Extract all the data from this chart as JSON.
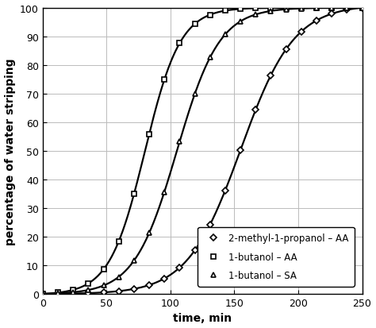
{
  "title": "",
  "xlabel": "time, min",
  "ylabel": "percentage of water stripping",
  "xlim": [
    0,
    250
  ],
  "ylim": [
    0,
    100
  ],
  "xticks": [
    0,
    50,
    100,
    150,
    200,
    250
  ],
  "yticks": [
    0,
    10,
    20,
    30,
    40,
    50,
    60,
    70,
    80,
    90,
    100
  ],
  "series": [
    {
      "label": "2-methyl-1-propanol – AA",
      "color": "#000000",
      "marker": "D",
      "markersize": 4,
      "linewidth": 1.6,
      "k": 0.048,
      "x0": 155
    },
    {
      "label": "1-butanol – AA",
      "color": "#000000",
      "marker": "s",
      "markersize": 4,
      "linewidth": 1.6,
      "k": 0.072,
      "x0": 80
    },
    {
      "label": "1-butanol – SA",
      "color": "#000000",
      "marker": "^",
      "markersize": 5,
      "linewidth": 1.6,
      "k": 0.06,
      "x0": 105
    }
  ],
  "background_color": "#ffffff",
  "grid_color": "#bbbbbb",
  "legend_fontsize": 8.5,
  "tick_fontsize": 9,
  "label_fontsize": 10,
  "n_markers": 22
}
